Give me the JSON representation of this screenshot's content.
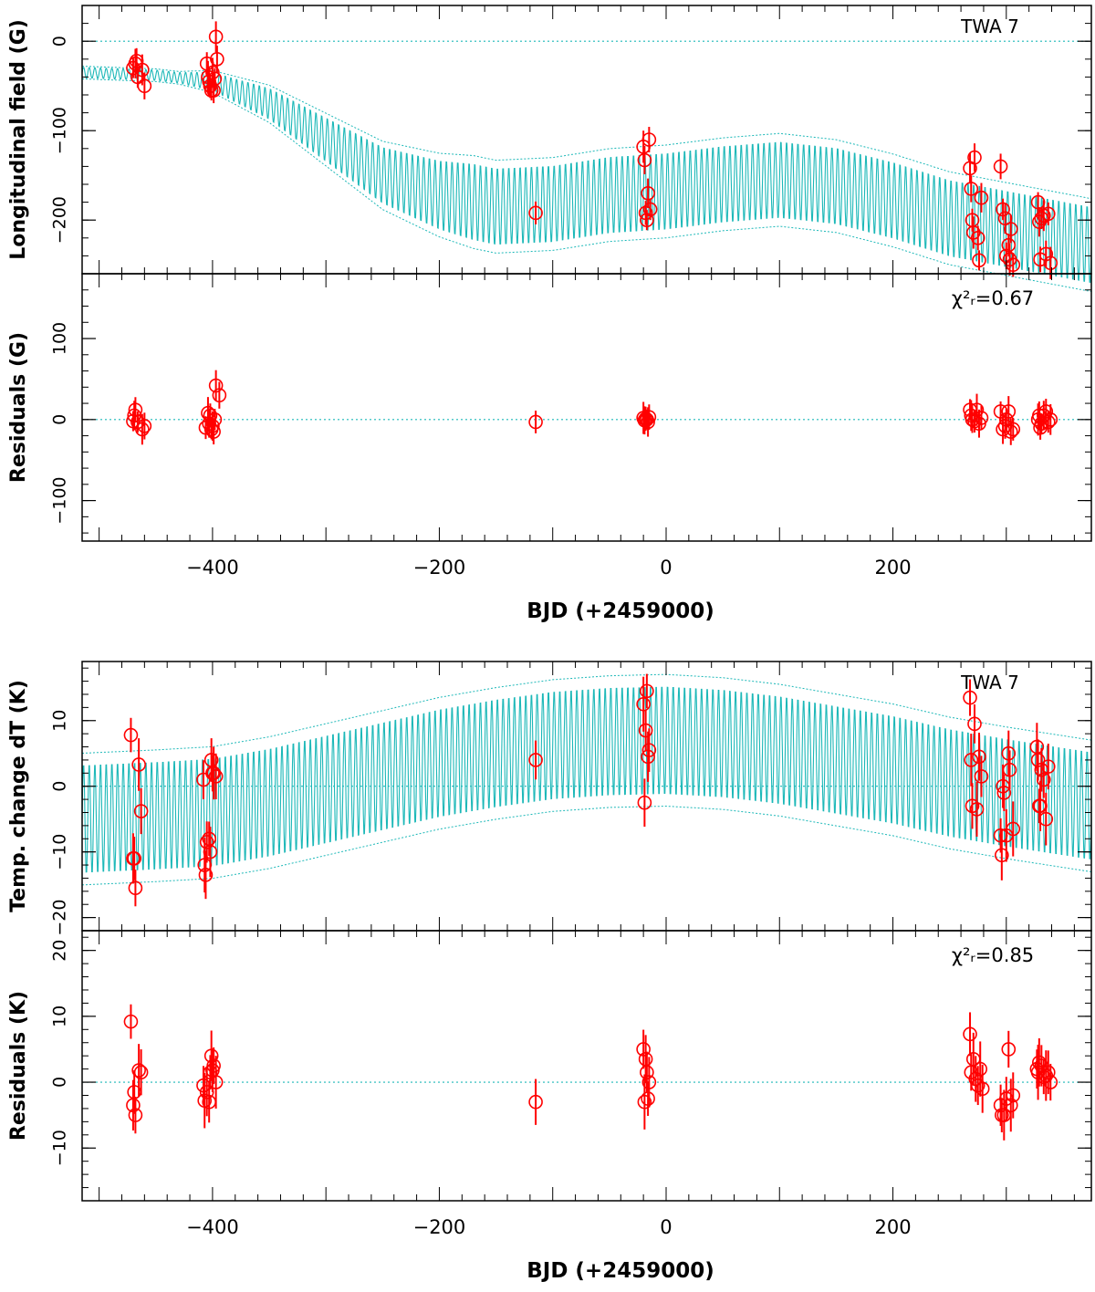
{
  "chart_data": [
    {
      "type": "scatter",
      "panel": "top-model",
      "target": "TWA 7",
      "ylabel": "Longitudinal field (G)",
      "xlim": [
        -515,
        375
      ],
      "ylim": [
        -260,
        40
      ],
      "yticks": [
        0,
        -100,
        -200
      ],
      "ytick_labels": [
        "0",
        "−100",
        "−200"
      ],
      "series": [
        {
          "name": "model",
          "style": "dotted-band",
          "mean_curve": [
            [
              -515,
              -35
            ],
            [
              -450,
              -38
            ],
            [
              -400,
              -45
            ],
            [
              -350,
              -70
            ],
            [
              -300,
              -110
            ],
            [
              -250,
              -150
            ],
            [
              -200,
              -172
            ],
            [
              -150,
              -185
            ],
            [
              -100,
              -182
            ],
            [
              -50,
              -172
            ],
            [
              0,
              -168
            ],
            [
              50,
              -160
            ],
            [
              100,
              -155
            ],
            [
              150,
              -162
            ],
            [
              200,
              -178
            ],
            [
              250,
              -198
            ],
            [
              300,
              -210
            ],
            [
              375,
              -228
            ]
          ]
        },
        {
          "name": "observations",
          "points": [
            [
              -470,
              -30
            ],
            [
              -468,
              -25
            ],
            [
              -467,
              -22
            ],
            [
              -466,
              -40
            ],
            [
              -462,
              -32
            ],
            [
              -460,
              -50
            ],
            [
              -405,
              -25
            ],
            [
              -404,
              -40
            ],
            [
              -403,
              -45
            ],
            [
              -402,
              -50
            ],
            [
              -401,
              -55
            ],
            [
              -400,
              -35
            ],
            [
              -399,
              -55
            ],
            [
              -398,
              -42
            ],
            [
              -397,
              5
            ],
            [
              -396,
              -20
            ],
            [
              -115,
              -192
            ],
            [
              -20,
              -118
            ],
            [
              -19,
              -133
            ],
            [
              -18,
              -192
            ],
            [
              -17,
              -200
            ],
            [
              -16,
              -170
            ],
            [
              -15,
              -110
            ],
            [
              -14,
              -188
            ],
            [
              268,
              -142
            ],
            [
              269,
              -165
            ],
            [
              270,
              -200
            ],
            [
              271,
              -214
            ],
            [
              272,
              -130
            ],
            [
              275,
              -220
            ],
            [
              276,
              -245
            ],
            [
              278,
              -175
            ],
            [
              295,
              -140
            ],
            [
              297,
              -188
            ],
            [
              299,
              -198
            ],
            [
              300,
              -240
            ],
            [
              302,
              -228
            ],
            [
              303,
              -244
            ],
            [
              304,
              -210
            ],
            [
              306,
              -250
            ],
            [
              328,
              -180
            ],
            [
              329,
              -202
            ],
            [
              330,
              -244
            ],
            [
              331,
              -198
            ],
            [
              333,
              -195
            ],
            [
              335,
              -238
            ],
            [
              337,
              -193
            ],
            [
              339,
              -248
            ]
          ]
        }
      ]
    },
    {
      "type": "scatter",
      "panel": "top-residuals",
      "stat_label": "χ²ᵣ=0.67",
      "ylabel": "Residuals (G)",
      "xlabel": "BJD (+2459000)",
      "xlim": [
        -515,
        375
      ],
      "ylim": [
        -150,
        180
      ],
      "yticks": [
        100,
        0,
        -100
      ],
      "ytick_labels": [
        "100",
        "0",
        "−100"
      ],
      "xticks": [
        -400,
        -200,
        0,
        200
      ],
      "xtick_labels": [
        "−400",
        "−200",
        "0",
        "200"
      ],
      "points": [
        [
          -470,
          -2
        ],
        [
          -469,
          5
        ],
        [
          -468,
          12
        ],
        [
          -466,
          -3
        ],
        [
          -462,
          -12
        ],
        [
          -460,
          -8
        ],
        [
          -406,
          -10
        ],
        [
          -404,
          8
        ],
        [
          -403,
          -5
        ],
        [
          -402,
          5
        ],
        [
          -401,
          -12
        ],
        [
          -400,
          -8
        ],
        [
          -399,
          -15
        ],
        [
          -398,
          0
        ],
        [
          -397,
          42
        ],
        [
          -394,
          30
        ],
        [
          -115,
          -3
        ],
        [
          -20,
          2
        ],
        [
          -19,
          -1
        ],
        [
          -18,
          1
        ],
        [
          -17,
          0
        ],
        [
          -16,
          -3
        ],
        [
          -15,
          3
        ],
        [
          268,
          12
        ],
        [
          269,
          5
        ],
        [
          270,
          0
        ],
        [
          272,
          -2
        ],
        [
          274,
          12
        ],
        [
          276,
          -5
        ],
        [
          278,
          2
        ],
        [
          295,
          10
        ],
        [
          297,
          -12
        ],
        [
          299,
          -8
        ],
        [
          300,
          0
        ],
        [
          302,
          10
        ],
        [
          304,
          -15
        ],
        [
          306,
          -12
        ],
        [
          328,
          0
        ],
        [
          329,
          5
        ],
        [
          330,
          -10
        ],
        [
          331,
          -5
        ],
        [
          333,
          5
        ],
        [
          335,
          10
        ],
        [
          337,
          -3
        ],
        [
          339,
          0
        ]
      ]
    },
    {
      "type": "scatter",
      "panel": "bottom-model",
      "target": "TWA 7",
      "ylabel": "Temp. change dT (K)",
      "xlim": [
        -515,
        375
      ],
      "ylim": [
        -22,
        19
      ],
      "yticks": [
        10,
        0,
        -10,
        -20
      ],
      "ytick_labels": [
        "10",
        "0",
        "−10",
        "−20"
      ],
      "series": [
        {
          "name": "model",
          "style": "dotted-band",
          "mean_curve": [
            [
              -515,
              -5
            ],
            [
              -450,
              -4.5
            ],
            [
              -400,
              -4
            ],
            [
              -350,
              -2.5
            ],
            [
              -300,
              -0.5
            ],
            [
              -250,
              1.5
            ],
            [
              -200,
              3.5
            ],
            [
              -150,
              5
            ],
            [
              -100,
              6.2
            ],
            [
              -50,
              6.8
            ],
            [
              0,
              7
            ],
            [
              50,
              6.5
            ],
            [
              100,
              5.5
            ],
            [
              150,
              4
            ],
            [
              200,
              2.5
            ],
            [
              250,
              0.5
            ],
            [
              300,
              -1
            ],
            [
              375,
              -3
            ]
          ]
        },
        {
          "name": "observations",
          "points": [
            [
              -472,
              7.8
            ],
            [
              -470,
              -11
            ],
            [
              -469,
              -11
            ],
            [
              -468,
              -15.5
            ],
            [
              -465,
              3.3
            ],
            [
              -463,
              -3.8
            ],
            [
              -408,
              1
            ],
            [
              -407,
              -12
            ],
            [
              -406,
              -13.5
            ],
            [
              -405,
              -8.5
            ],
            [
              -403,
              -8
            ],
            [
              -402,
              -10
            ],
            [
              -401,
              4
            ],
            [
              -400,
              2
            ],
            [
              -399,
              2
            ],
            [
              -397,
              1.5
            ],
            [
              -115,
              4
            ],
            [
              -20,
              12.5
            ],
            [
              -19,
              -2.5
            ],
            [
              -18,
              8.5
            ],
            [
              -17,
              14.5
            ],
            [
              -16,
              4.5
            ],
            [
              -15,
              5.5
            ],
            [
              268,
              13.5
            ],
            [
              269,
              4
            ],
            [
              270,
              -3
            ],
            [
              272,
              9.5
            ],
            [
              274,
              -3.5
            ],
            [
              276,
              4.5
            ],
            [
              278,
              1.5
            ],
            [
              295,
              -7.5
            ],
            [
              296,
              -10.5
            ],
            [
              297,
              0
            ],
            [
              298,
              -1
            ],
            [
              300,
              -7.5
            ],
            [
              302,
              5
            ],
            [
              303,
              2.5
            ],
            [
              306,
              -6.5
            ],
            [
              327,
              6
            ],
            [
              328,
              4
            ],
            [
              329,
              -3
            ],
            [
              330,
              -3
            ],
            [
              331,
              2.5
            ],
            [
              333,
              1
            ],
            [
              335,
              -5
            ],
            [
              337,
              3
            ]
          ]
        }
      ]
    },
    {
      "type": "scatter",
      "panel": "bottom-residuals",
      "stat_label": "χ²ᵣ=0.85",
      "ylabel": "Residuals (K)",
      "xlabel": "BJD (+2459000)",
      "xlim": [
        -515,
        375
      ],
      "ylim": [
        -18,
        23
      ],
      "yticks": [
        20,
        10,
        0,
        -10
      ],
      "ytick_labels": [
        "20",
        "10",
        "0",
        "−10"
      ],
      "xticks": [
        -400,
        -200,
        0,
        200
      ],
      "xtick_labels": [
        "−400",
        "−200",
        "0",
        "200"
      ],
      "points": [
        [
          -472,
          9.2
        ],
        [
          -470,
          -3.5
        ],
        [
          -469,
          -1.5
        ],
        [
          -468,
          -5
        ],
        [
          -465,
          1.8
        ],
        [
          -463,
          1.5
        ],
        [
          -408,
          -0.5
        ],
        [
          -407,
          -2.8
        ],
        [
          -405,
          -1.5
        ],
        [
          -403,
          -3
        ],
        [
          -402,
          1.5
        ],
        [
          -401,
          4
        ],
        [
          -400,
          1.8
        ],
        [
          -399,
          2.5
        ],
        [
          -397,
          0
        ],
        [
          -115,
          -3
        ],
        [
          -20,
          5
        ],
        [
          -19,
          -3
        ],
        [
          -18,
          3.5
        ],
        [
          -17,
          1.5
        ],
        [
          -16,
          -2.5
        ],
        [
          -15,
          0
        ],
        [
          268,
          7.3
        ],
        [
          269,
          1.5
        ],
        [
          271,
          3.5
        ],
        [
          273,
          0.5
        ],
        [
          275,
          -0.5
        ],
        [
          277,
          2
        ],
        [
          279,
          -1
        ],
        [
          295,
          -3.5
        ],
        [
          296,
          -5
        ],
        [
          298,
          -5
        ],
        [
          300,
          -2.5
        ],
        [
          302,
          5
        ],
        [
          304,
          -3.5
        ],
        [
          306,
          -2
        ],
        [
          327,
          2
        ],
        [
          328,
          1.5
        ],
        [
          329,
          3
        ],
        [
          331,
          2.5
        ],
        [
          333,
          0.8
        ],
        [
          335,
          1
        ],
        [
          337,
          1.5
        ],
        [
          339,
          0
        ]
      ]
    }
  ],
  "colors": {
    "model": "#1cb8b8",
    "points": "#ff0000",
    "axes": "#000000"
  }
}
